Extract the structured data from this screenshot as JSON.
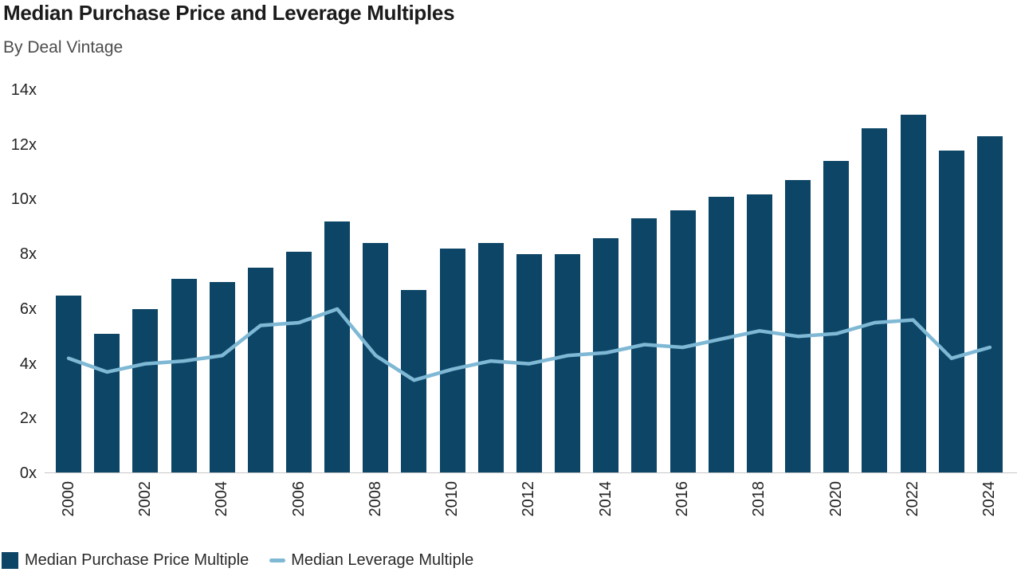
{
  "header": {
    "title": "Median Purchase Price and Leverage Multiples",
    "subtitle": "By Deal Vintage"
  },
  "colors": {
    "bar": "#0c4566",
    "line": "#7eb8d4",
    "axis_line": "#c6c6c6",
    "title_text": "#1b1b1b",
    "subtitle_text": "#4c4c4c",
    "tick_text": "#242424"
  },
  "chart_data": {
    "type": "bar",
    "title": "Median Purchase Price and Leverage Multiples",
    "subtitle": "By Deal Vintage",
    "categories": [
      "2000",
      "2001",
      "2002",
      "2003",
      "2004",
      "2005",
      "2006",
      "2007",
      "2008",
      "2009",
      "2010",
      "2011",
      "2012",
      "2013",
      "2014",
      "2015",
      "2016",
      "2017",
      "2018",
      "2019",
      "2020",
      "2021",
      "2022",
      "2023",
      "2024"
    ],
    "series": [
      {
        "name": "Median Purchase Price Multiple",
        "type": "bar",
        "color": "#0c4566",
        "values": [
          6.5,
          5.1,
          6.0,
          7.1,
          7.0,
          7.5,
          8.1,
          9.2,
          8.4,
          6.7,
          8.2,
          8.4,
          8.0,
          8.0,
          8.6,
          9.3,
          9.6,
          10.1,
          10.2,
          10.7,
          11.4,
          12.6,
          13.1,
          11.8,
          12.3
        ]
      },
      {
        "name": "Median Leverage Multiple",
        "type": "line",
        "color": "#7eb8d4",
        "values": [
          4.2,
          3.7,
          4.0,
          4.1,
          4.3,
          5.4,
          5.5,
          6.0,
          4.3,
          3.4,
          3.8,
          4.1,
          4.0,
          4.3,
          4.4,
          4.7,
          4.6,
          4.9,
          5.2,
          5.0,
          5.1,
          5.5,
          5.6,
          4.2,
          4.6
        ]
      }
    ],
    "y_axis": {
      "min": 0,
      "max": 14,
      "tick_step": 2,
      "suffix": "x",
      "tick_labels_top_down": [
        "14x",
        "12x",
        "10x",
        "8x",
        "6x",
        "4x",
        "2x",
        "0x"
      ]
    },
    "x_axis": {
      "tick_labels": [
        "2000",
        "2002",
        "2004",
        "2006",
        "2008",
        "2010",
        "2012",
        "2014",
        "2016",
        "2018",
        "2020",
        "2022",
        "2024"
      ],
      "rotation_degrees": -90
    },
    "grid": false,
    "legend_position": "bottom"
  },
  "legend": {
    "items": [
      {
        "label": "Median Purchase Price Multiple",
        "swatch": "square",
        "color": "#0c4566"
      },
      {
        "label": "Median Leverage Multiple",
        "swatch": "dash",
        "color": "#7eb8d4"
      }
    ]
  }
}
